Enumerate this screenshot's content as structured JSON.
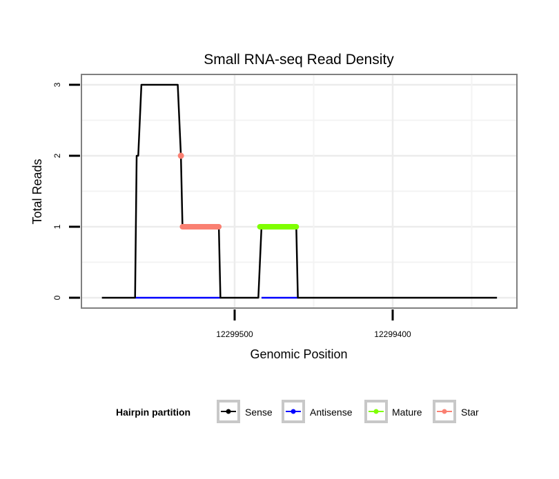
{
  "chart_data": {
    "type": "line",
    "title": "Small RNA-seq Read Density",
    "xlabel": "Genomic Position",
    "ylabel": "Total Reads",
    "xlim": [
      12299584,
      12299334
    ],
    "x_reversed": true,
    "ylim": [
      0,
      3
    ],
    "x_ticks": [
      12299500,
      12299400
    ],
    "x_tick_labels": [
      "12299500",
      "12299400"
    ],
    "y_ticks": [
      0,
      1,
      2,
      3
    ],
    "y_tick_labels": [
      "0",
      "1",
      "2",
      "3"
    ],
    "grid": true,
    "legend": {
      "title": "Hairpin partition",
      "placement": "bottom"
    },
    "series": [
      {
        "name": "Sense",
        "color": "#000000",
        "points": [
          [
            12299584,
            0
          ],
          [
            12299563,
            0
          ],
          [
            12299562,
            2
          ],
          [
            12299561,
            2
          ],
          [
            12299559,
            3
          ],
          [
            12299536,
            3
          ],
          [
            12299534,
            2
          ],
          [
            12299533,
            1
          ],
          [
            12299510,
            1
          ],
          [
            12299509,
            0
          ],
          [
            12299485,
            0
          ],
          [
            12299483,
            1
          ],
          [
            12299461,
            1
          ],
          [
            12299460,
            0
          ],
          [
            12299334,
            0
          ]
        ]
      },
      {
        "name": "Antisense",
        "color": "#0000FF",
        "points": [
          [
            12299563,
            0
          ],
          [
            12299509,
            0
          ]
        ],
        "points2": [
          [
            12299483,
            0
          ],
          [
            12299460,
            0
          ]
        ]
      },
      {
        "name": "Mature",
        "color": "#7FFF00",
        "points": [
          [
            12299484,
            1
          ],
          [
            12299461,
            1
          ]
        ]
      },
      {
        "name": "Star",
        "color": "#FA8072",
        "points": [
          [
            12299534,
            2
          ]
        ],
        "points2": [
          [
            12299533,
            1
          ],
          [
            12299510,
            1
          ]
        ]
      }
    ]
  }
}
